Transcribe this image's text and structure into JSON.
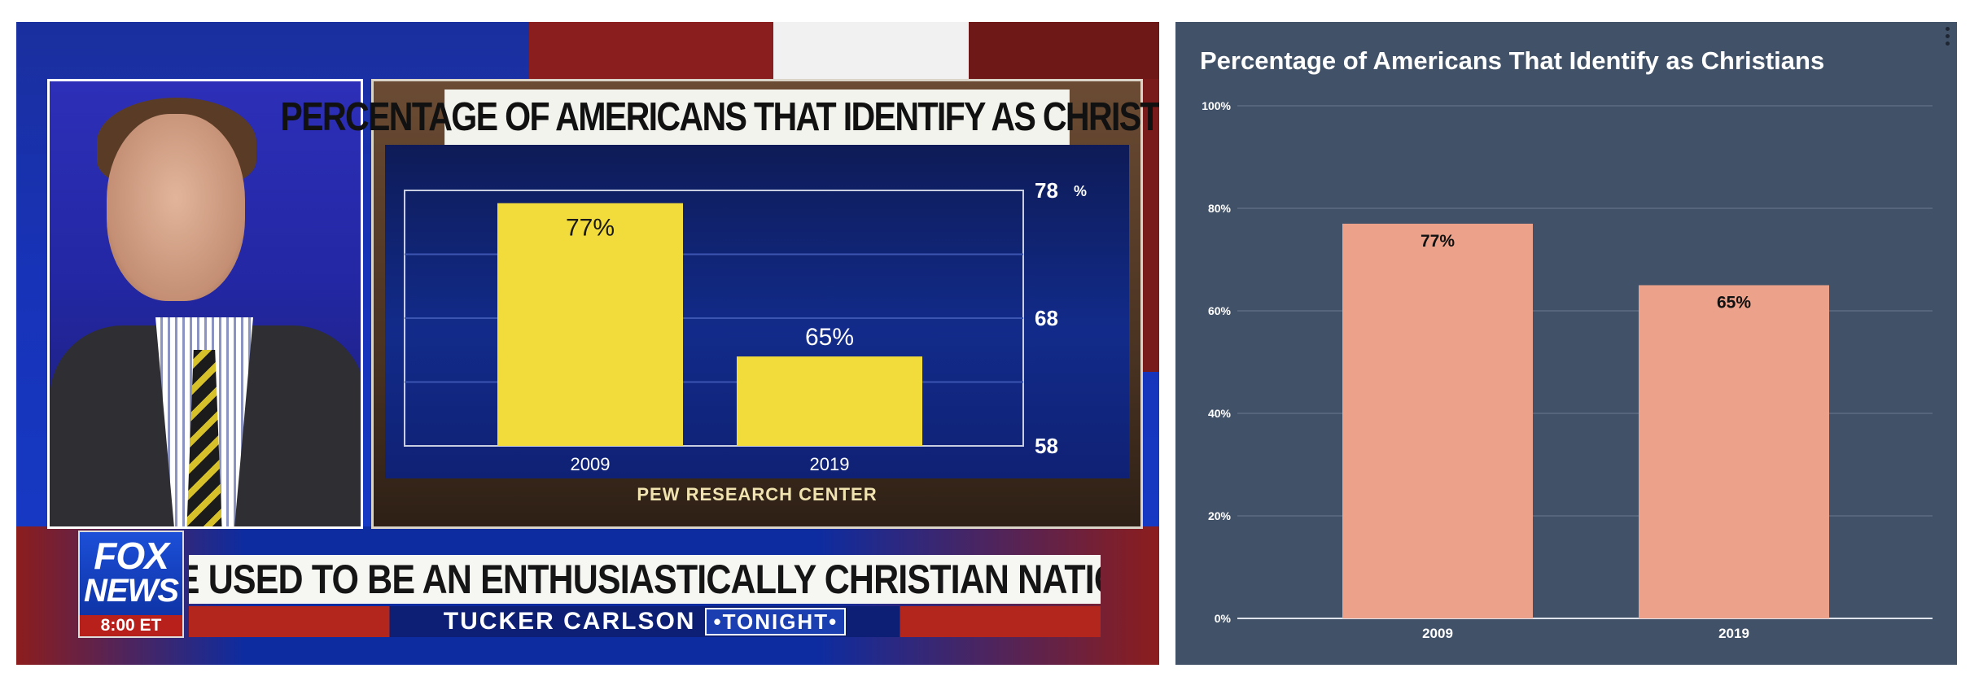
{
  "tv_screenshot": {
    "graphic_title": "PERCENTAGE OF AMERICANS THAT IDENTIFY AS CHRISTIANS",
    "source": "PEW RESEARCH CENTER",
    "ticker": "WE USED TO BE AN ENTHUSIASTICALLY CHRISTIAN NATION",
    "show_name": "TUCKER CARLSON",
    "show_suffix": "•TONIGHT•",
    "logo_word1": "FOX",
    "logo_word2": "NEWS",
    "logo_time": "8:00 ET",
    "colors": {
      "bar": "#f2dc3c",
      "panel_bg": "#122b8a",
      "frame": "#d9d3c8"
    }
  },
  "chart_data": [
    {
      "type": "bar",
      "title": "PERCENTAGE OF AMERICANS THAT IDENTIFY AS CHRISTIANS",
      "categories": [
        "2009",
        "2019"
      ],
      "values": [
        77,
        65
      ],
      "data_labels": [
        "77%",
        "65%"
      ],
      "ylim": [
        58,
        78
      ],
      "yticks": [
        58,
        68,
        78
      ],
      "ytick_labels": [
        "58",
        "68",
        "78"
      ],
      "y_unit_label": "%",
      "grid": true,
      "colors": {
        "bar": "#f2dc3c"
      }
    },
    {
      "type": "bar",
      "title": "Percentage of Americans That Identify as Christians",
      "categories": [
        "2009",
        "2019"
      ],
      "values": [
        77,
        65
      ],
      "data_labels": [
        "77%",
        "65%"
      ],
      "ylim": [
        0,
        100
      ],
      "yticks": [
        0,
        20,
        40,
        60,
        80,
        100
      ],
      "ytick_labels": [
        "0%",
        "20%",
        "40%",
        "60%",
        "80%",
        "100%"
      ],
      "grid": true,
      "colors": {
        "bar": "#eba18a",
        "background": "#415168",
        "grid": "#6a7890",
        "text": "#ffffff"
      }
    }
  ]
}
